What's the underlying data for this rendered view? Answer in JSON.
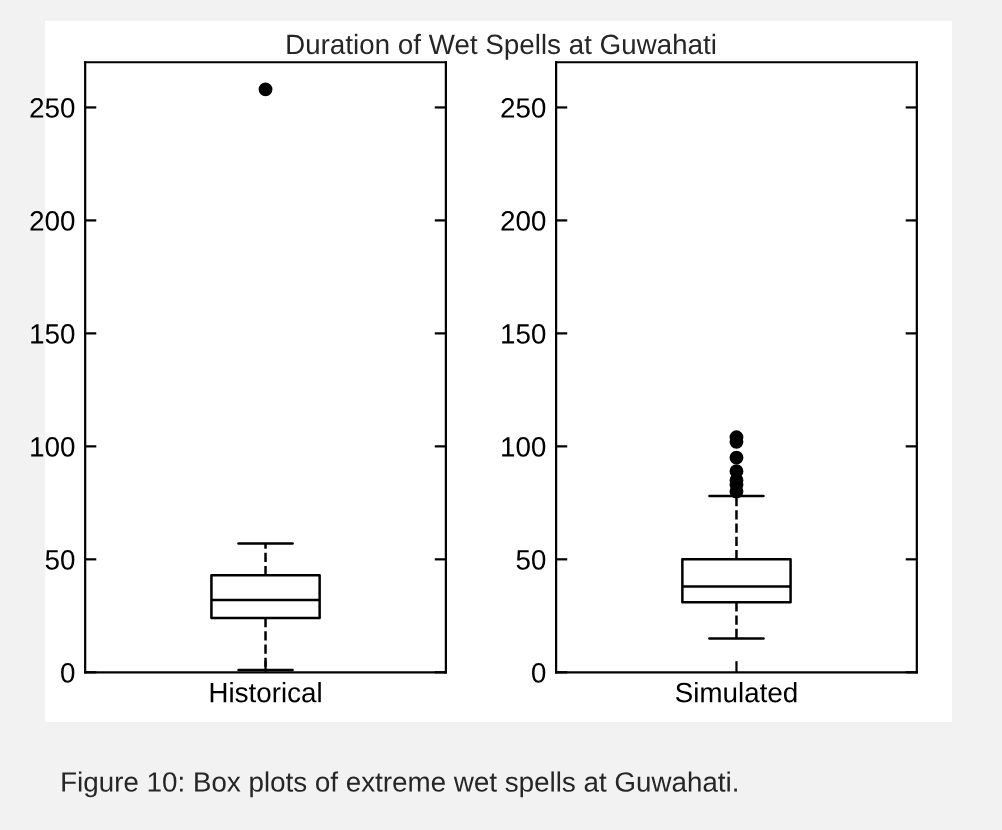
{
  "chart_data": [
    {
      "type": "box",
      "title": "Duration of Wet Spells at Guwahati",
      "categories": [
        "Historical"
      ],
      "line_style": "dashed",
      "marker": "circle",
      "boxes": [
        {
          "low": 1,
          "q1": 24,
          "median": 32,
          "q3": 43,
          "high": 57,
          "outliers": [
            258
          ]
        }
      ],
      "ylim": [
        0,
        270
      ],
      "yticks": [
        0,
        50,
        100,
        150,
        200,
        250
      ],
      "grid": false,
      "annotations": [
        "Figure 10: Box plots of extreme wet spells at Guwahati."
      ]
    },
    {
      "type": "box",
      "categories": [
        "Simulated"
      ],
      "line_style": "dashed",
      "marker": "circle",
      "boxes": [
        {
          "low": 15,
          "q1": 31,
          "median": 38,
          "q3": 50,
          "high": 78,
          "outliers": [
            80,
            83,
            85,
            89,
            95,
            102,
            104
          ]
        }
      ],
      "ylim": [
        0,
        270
      ],
      "yticks": [
        0,
        50,
        100,
        150,
        200,
        250
      ],
      "grid": false
    }
  ]
}
